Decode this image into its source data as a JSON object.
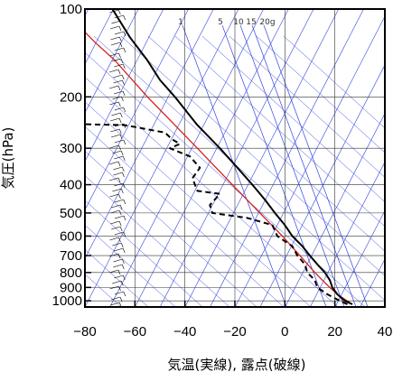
{
  "chart_data": {
    "type": "line",
    "xlabel": "気温(実線), 露点(破線)",
    "ylabel": "気圧(hPa)",
    "x_axis": {
      "range": [
        -80,
        40
      ],
      "ticks": [
        -80,
        -60,
        -40,
        -20,
        0,
        20,
        40
      ],
      "tick_labels": [
        "−80",
        "−60",
        "−40",
        "−20",
        "0",
        "20",
        "40"
      ]
    },
    "y_axis": {
      "scale": "log",
      "range": [
        1050,
        100
      ],
      "ticks": [
        100,
        200,
        300,
        400,
        500,
        600,
        700,
        800,
        900,
        1000
      ],
      "tick_labels": [
        "100",
        "200",
        "300",
        "400",
        "500",
        "600",
        "700",
        "800",
        "900",
        "1000"
      ]
    },
    "grid": true,
    "mixing_ratio_labels": [
      "1",
      "5",
      "10",
      "15",
      "20g"
    ],
    "colors": {
      "temperature": "#000000",
      "dewpoint": "#000000",
      "parcel": "#d42020",
      "background_lines": "#3344dd",
      "grid": "#333333"
    },
    "series": [
      {
        "style": "solid",
        "points": [
          [
            1028,
            27
          ],
          [
            1000,
            24
          ],
          [
            950,
            21
          ],
          [
            900,
            19
          ],
          [
            850,
            18
          ],
          [
            800,
            16
          ],
          [
            750,
            13
          ],
          [
            700,
            10
          ],
          [
            650,
            7
          ],
          [
            600,
            3
          ],
          [
            550,
            0
          ],
          [
            500,
            -4
          ],
          [
            450,
            -8
          ],
          [
            400,
            -13
          ],
          [
            350,
            -19
          ],
          [
            300,
            -26
          ],
          [
            250,
            -35
          ],
          [
            200,
            -44
          ],
          [
            175,
            -50
          ],
          [
            150,
            -55
          ],
          [
            125,
            -62
          ],
          [
            110,
            -66
          ],
          [
            100,
            -69
          ]
        ]
      },
      {
        "style": "dashed",
        "points": [
          [
            1028,
            25
          ],
          [
            1000,
            22
          ],
          [
            950,
            17
          ],
          [
            900,
            13
          ],
          [
            850,
            12
          ],
          [
            800,
            9
          ],
          [
            750,
            8
          ],
          [
            700,
            5
          ],
          [
            650,
            3
          ],
          [
            600,
            -3
          ],
          [
            550,
            -5
          ],
          [
            520,
            -15
          ],
          [
            500,
            -29
          ],
          [
            470,
            -30
          ],
          [
            430,
            -26
          ],
          [
            420,
            -35
          ],
          [
            380,
            -37
          ],
          [
            350,
            -34
          ],
          [
            320,
            -38
          ],
          [
            300,
            -46
          ],
          [
            290,
            -42
          ],
          [
            280,
            -45
          ],
          [
            265,
            -48
          ],
          [
            250,
            -64
          ],
          [
            248,
            -81
          ]
        ]
      },
      {
        "style": "solid",
        "points": [
          [
            1028,
            27
          ],
          [
            950,
            21
          ],
          [
            900,
            18
          ],
          [
            850,
            15
          ],
          [
            800,
            12
          ],
          [
            700,
            6
          ],
          [
            600,
            -1
          ],
          [
            500,
            -10
          ],
          [
            400,
            -21
          ],
          [
            300,
            -35
          ],
          [
            250,
            -44
          ],
          [
            200,
            -55
          ],
          [
            150,
            -68
          ],
          [
            130,
            -76
          ],
          [
            120,
            -80
          ]
        ]
      }
    ]
  }
}
